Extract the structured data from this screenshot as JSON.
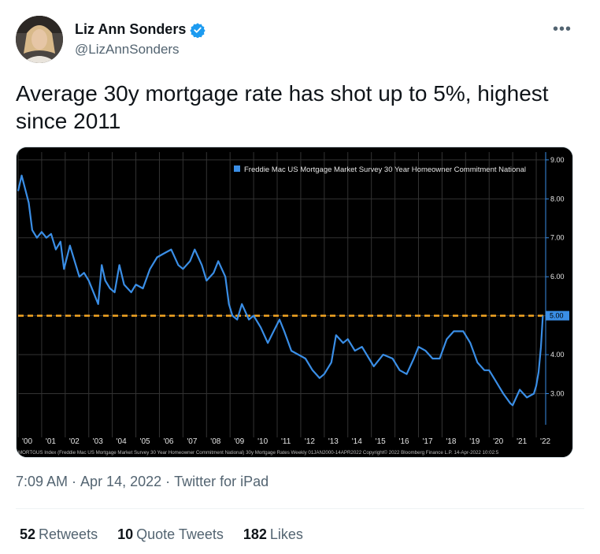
{
  "author": {
    "name": "Liz Ann Sonders",
    "handle": "@LizAnnSonders",
    "verified_icon": "verified-badge-icon",
    "avatar_icon": "profile-photo"
  },
  "more_label": "•••",
  "tweet_text": "Average 30y mortgage rate has shot up to 5%, highest since 2011",
  "meta": {
    "time": "7:09 AM",
    "sep1": "·",
    "date": "Apr 14, 2022",
    "sep2": "·",
    "source": "Twitter for iPad"
  },
  "stats": {
    "retweets_count": "52",
    "retweets_label": "Retweets",
    "quotes_count": "10",
    "quotes_label": "Quote Tweets",
    "likes_count": "182",
    "likes_label": "Likes"
  },
  "colors": {
    "line": "#3a8ee6",
    "reference_line": "#f5a623",
    "background": "#000000",
    "label_box": "#3a8ee6"
  },
  "chart_data": {
    "type": "line",
    "legend": "Freddie Mac US Mortgage Market Survey 30 Year Homeowner Commitment National",
    "legend_position": "top-right",
    "footer": "MORTGUS Index (Freddie Mac US Mortgage Market Survey 30 Year Homeowner Commitment National) 30y Mortgage Rates Weekly 01JAN2000-14APR2022 Copyright© 2022 Bloomberg Finance L.P. 14-Apr-2022 10:02:5",
    "x_ticks": [
      "'00",
      "'01",
      "'02",
      "'03",
      "'04",
      "'05",
      "'06",
      "'07",
      "'08",
      "'09",
      "'10",
      "'11",
      "'12",
      "'13",
      "'14",
      "'15",
      "'16",
      "'17",
      "'18",
      "'19",
      "'20",
      "'21",
      "'22"
    ],
    "y_ticks": [
      "3.00",
      "4.00",
      "5.00",
      "6.00",
      "7.00",
      "8.00",
      "9.00"
    ],
    "xlim": [
      2000.0,
      2022.4
    ],
    "ylim": [
      2.2,
      9.2
    ],
    "reference_value": 5.0,
    "reference_label": "5.00",
    "grid": true,
    "series": [
      {
        "x": [
          2000.0,
          2000.15,
          2000.3,
          2000.45,
          2000.6,
          2000.8,
          2001.0,
          2001.2,
          2001.4,
          2001.6,
          2001.8,
          2001.95,
          2002.2,
          2002.4,
          2002.6,
          2002.8,
          2003.0,
          2003.2,
          2003.4,
          2003.55,
          2003.7,
          2003.9,
          2004.1,
          2004.3,
          2004.5,
          2004.8,
          2005.0,
          2005.3,
          2005.6,
          2005.9,
          2006.2,
          2006.5,
          2006.8,
          2007.0,
          2007.3,
          2007.5,
          2007.8,
          2008.0,
          2008.3,
          2008.5,
          2008.8,
          2008.95,
          2009.1,
          2009.3,
          2009.5,
          2009.8,
          2010.0,
          2010.3,
          2010.6,
          2010.85,
          2011.1,
          2011.3,
          2011.6,
          2011.9,
          2012.2,
          2012.5,
          2012.8,
          2013.0,
          2013.3,
          2013.5,
          2013.8,
          2014.0,
          2014.3,
          2014.6,
          2014.9,
          2015.1,
          2015.5,
          2015.9,
          2016.2,
          2016.5,
          2016.8,
          2017.0,
          2017.3,
          2017.6,
          2017.9,
          2018.2,
          2018.5,
          2018.9,
          2019.2,
          2019.5,
          2019.8,
          2020.0,
          2020.3,
          2020.6,
          2020.9,
          2021.0,
          2021.3,
          2021.6,
          2021.9,
          2022.0,
          2022.1,
          2022.2,
          2022.28
        ],
        "y": [
          8.2,
          8.6,
          8.25,
          7.9,
          7.2,
          7.0,
          7.15,
          7.0,
          7.1,
          6.7,
          6.9,
          6.2,
          6.8,
          6.4,
          6.0,
          6.1,
          5.9,
          5.6,
          5.3,
          6.3,
          5.9,
          5.7,
          5.6,
          6.3,
          5.8,
          5.6,
          5.8,
          5.7,
          6.2,
          6.5,
          6.6,
          6.7,
          6.3,
          6.2,
          6.4,
          6.7,
          6.3,
          5.9,
          6.1,
          6.4,
          6.0,
          5.3,
          5.0,
          4.9,
          5.3,
          4.9,
          5.0,
          4.7,
          4.3,
          4.6,
          4.9,
          4.6,
          4.1,
          4.0,
          3.9,
          3.6,
          3.4,
          3.5,
          3.8,
          4.5,
          4.3,
          4.4,
          4.1,
          4.2,
          3.9,
          3.7,
          4.0,
          3.9,
          3.6,
          3.5,
          3.9,
          4.2,
          4.1,
          3.9,
          3.9,
          4.4,
          4.6,
          4.6,
          4.3,
          3.8,
          3.6,
          3.6,
          3.3,
          3.0,
          2.75,
          2.7,
          3.1,
          2.9,
          3.0,
          3.2,
          3.55,
          4.2,
          5.0
        ]
      }
    ]
  }
}
